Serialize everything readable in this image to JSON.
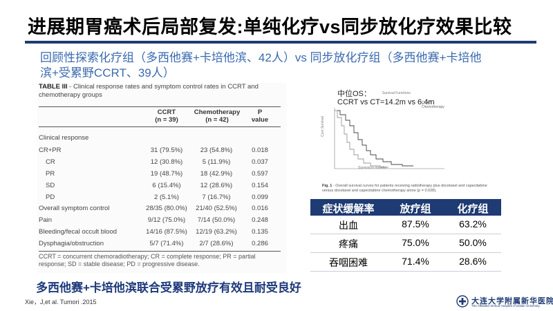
{
  "slide": {
    "title": "进展期胃癌术后局部复发:单纯化疗vs同步放化疗效果比较",
    "subtitle": "回顾性探索化疗组（多西他赛+卡培他滨、42人）vs 同步放化疗组（多西他赛+卡培他滨+受累野CCRT、39人）",
    "conclusion": "多西他赛+卡培他滨联合受累野放疗有效且耐受良好",
    "citation": "Xie，J,et al. Tumori .2015",
    "accent_color": "#1f3b73"
  },
  "table3": {
    "caption_bold": "TABLE III",
    "caption_text": " - Clinical response rates and symptom control rates in CCRT and chemotherapy groups",
    "head_ccrt": "CCRT",
    "head_ccrt_n": "(n = 39)",
    "head_chemo": "Chemotherapy",
    "head_chemo_n": "(n = 42)",
    "head_p": "P",
    "head_p2": "value",
    "rows": [
      {
        "label": "Clinical response",
        "ccrt": "",
        "chemo": "",
        "p": ""
      },
      {
        "label": "CR+PR",
        "ccrt": "31 (79.5%)",
        "chemo": "23 (54.8%)",
        "p": "0.018"
      },
      {
        "label": "CR",
        "ccrt": "12 (30.8%)",
        "chemo": "5 (11.9%)",
        "p": "0.037"
      },
      {
        "label": "PR",
        "ccrt": "19 (48.7%)",
        "chemo": "18 (42.9%)",
        "p": "0.597"
      },
      {
        "label": "SD",
        "ccrt": "6 (15.4%)",
        "chemo": "12 (28.6%)",
        "p": "0.154"
      },
      {
        "label": "PD",
        "ccrt": "2 (5.1%)",
        "chemo": "7 (16.7%)",
        "p": "0.099"
      },
      {
        "label": "Overall symptom control",
        "ccrt": "28/35 (80.0%)",
        "chemo": "21/40 (52.5%)",
        "p": "0.016"
      },
      {
        "label": "Pain",
        "ccrt": "9/12 (75.0%)",
        "chemo": "7/14 (50.0%)",
        "p": "0.248"
      },
      {
        "label": "Bleeding/fecal occult blood",
        "ccrt": "14/16 (87.5%)",
        "chemo": "12/19 (63.2%)",
        "p": "0.135"
      },
      {
        "label": "Dysphagia/obstruction",
        "ccrt": "5/7 (71.4%)",
        "chemo": "2/7 (28.6%)",
        "p": "0.286"
      }
    ],
    "footnote": "CCRT = concurrent chemoradiotherapy; CR = complete response; PR = partial response; SD = stable disease; PD = progressive disease."
  },
  "figure": {
    "os_label": "中位OS：",
    "os_value": "CCRT vs CT=14.2m vs 6.4m",
    "plot_title": "Survival Functions",
    "legend_1": "CCRT",
    "legend_2": "Chemotherapy",
    "y_label": "Cum Survival",
    "x_label": "Survival in months",
    "caption_bold": "Fig. 1",
    "caption_text": " - Overall survival curves for patients receiving radiotherapy plus docetaxel and capecitabine versus docetaxel and capecitabine chemotherapy alone (p = 0.028)."
  },
  "comparison": {
    "headers": [
      "症状缓解率",
      "放疗组",
      "化疗组"
    ],
    "rows": [
      [
        "出血",
        "87.5%",
        "63.2%"
      ],
      [
        "疼痛",
        "75.0%",
        "50.0%"
      ],
      [
        "吞咽困难",
        "71.4%",
        "28.6%"
      ]
    ]
  },
  "logo": {
    "name": "大连大学附属新华医院",
    "sub": "The Affiliated Xinhua Hospital of Dalian University"
  }
}
